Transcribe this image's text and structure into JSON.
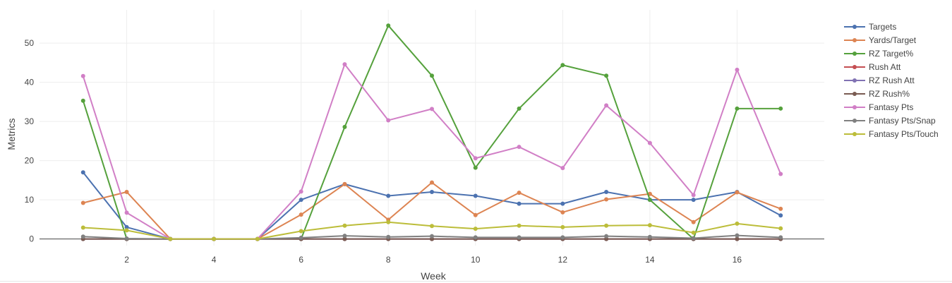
{
  "chart_data": {
    "type": "line",
    "title": "",
    "xlabel": "Week",
    "ylabel": "Metrics",
    "x": [
      1,
      2,
      3,
      4,
      5,
      6,
      7,
      8,
      9,
      10,
      11,
      12,
      13,
      14,
      15,
      16,
      17
    ],
    "xlim": [
      0.0,
      18.0
    ],
    "ylim": [
      -1.7,
      58.5
    ],
    "xticks": [
      2,
      4,
      6,
      8,
      10,
      12,
      14,
      16
    ],
    "yticks": [
      0,
      10,
      20,
      30,
      40,
      50
    ],
    "grid": true,
    "legend_position": "top-right",
    "series": [
      {
        "name": "Targets",
        "color": "#4c72b0",
        "values": [
          17,
          3,
          0,
          0,
          0,
          10,
          14,
          11,
          12,
          11,
          9,
          9,
          12,
          10,
          10,
          12,
          6
        ]
      },
      {
        "name": "Yards/Target",
        "color": "#dd8452",
        "values": [
          9.2,
          12,
          0,
          0,
          0,
          6.2,
          14,
          4.9,
          14.4,
          6.1,
          11.8,
          6.8,
          10.1,
          11.5,
          4.3,
          11.9,
          7.7
        ]
      },
      {
        "name": "RZ Target%",
        "color": "#55a13c",
        "values": [
          35.3,
          0,
          0,
          0,
          0,
          0,
          28.6,
          54.5,
          41.7,
          18.2,
          33.3,
          44.4,
          41.7,
          10,
          0,
          33.3,
          33.3
        ]
      },
      {
        "name": "Rush Att",
        "color": "#c44e52",
        "values": [
          0,
          0,
          0,
          0,
          0,
          0,
          0,
          0,
          0,
          0,
          0,
          0,
          0,
          0,
          0,
          0,
          0
        ]
      },
      {
        "name": "RZ Rush Att",
        "color": "#8172b3",
        "values": [
          0,
          0,
          0,
          0,
          0,
          0,
          0,
          0,
          0,
          0,
          0,
          0,
          0,
          0,
          0,
          0,
          0
        ]
      },
      {
        "name": "RZ Rush%",
        "color": "#7a5c52",
        "values": [
          0,
          0,
          0,
          0,
          0,
          0,
          0,
          0,
          0,
          0,
          0,
          0,
          0,
          0,
          0,
          0,
          0
        ]
      },
      {
        "name": "Fantasy Pts",
        "color": "#d17fc6",
        "values": [
          41.6,
          6.7,
          0,
          0,
          0,
          12.1,
          44.6,
          30.3,
          33.2,
          20.6,
          23.5,
          18.1,
          34.1,
          24.5,
          11.2,
          43.2,
          16.6
        ]
      },
      {
        "name": "Fantasy Pts/Snap",
        "color": "#808080",
        "values": [
          0.6,
          0.1,
          0,
          0,
          0,
          0.3,
          0.8,
          0.5,
          0.7,
          0.4,
          0.4,
          0.4,
          0.7,
          0.5,
          0.2,
          0.9,
          0.4
        ]
      },
      {
        "name": "Fantasy Pts/Touch",
        "color": "#bcbd3a",
        "values": [
          2.9,
          2.2,
          0,
          0,
          0,
          2.0,
          3.4,
          4.3,
          3.3,
          2.6,
          3.4,
          3.0,
          3.4,
          3.5,
          1.6,
          3.9,
          2.7
        ]
      }
    ]
  }
}
